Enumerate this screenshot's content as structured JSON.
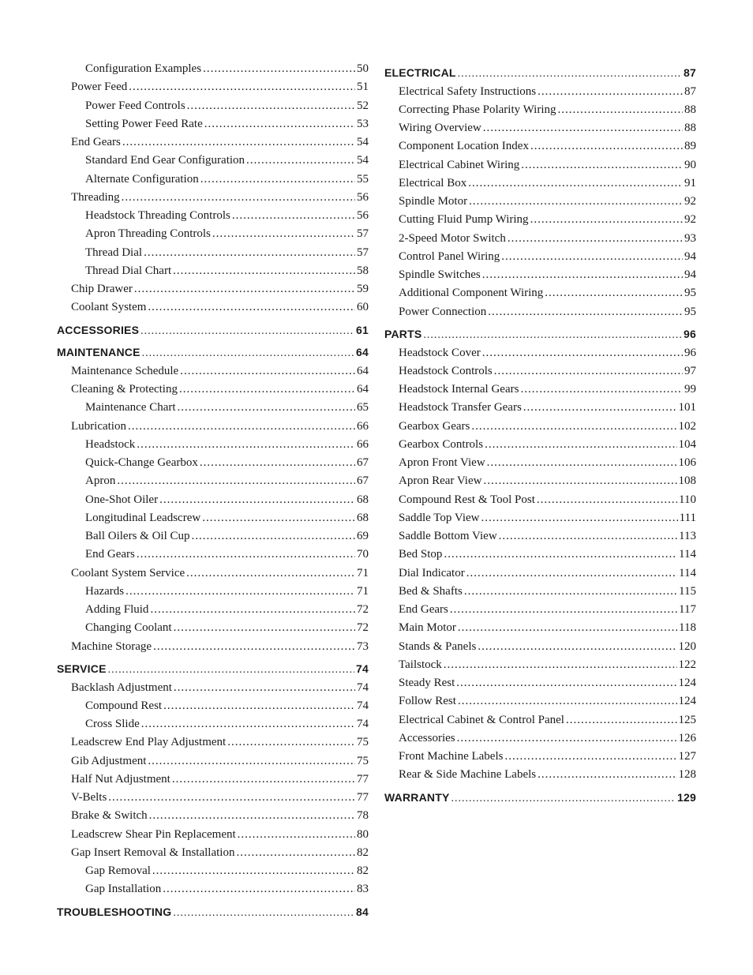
{
  "columns": [
    {
      "items": [
        {
          "label": "Configuration Examples",
          "page": "50",
          "indent": 2,
          "section": false
        },
        {
          "label": "Power Feed",
          "page": "51",
          "indent": 1,
          "section": false
        },
        {
          "label": "Power Feed Controls",
          "page": "52",
          "indent": 2,
          "section": false
        },
        {
          "label": "Setting Power Feed Rate",
          "page": "53",
          "indent": 2,
          "section": false
        },
        {
          "label": "End Gears",
          "page": "54",
          "indent": 1,
          "section": false
        },
        {
          "label": "Standard End Gear Configuration",
          "page": "54",
          "indent": 2,
          "section": false
        },
        {
          "label": "Alternate Configuration",
          "page": "55",
          "indent": 2,
          "section": false
        },
        {
          "label": "Threading",
          "page": "56",
          "indent": 1,
          "section": false
        },
        {
          "label": "Headstock Threading Controls",
          "page": "56",
          "indent": 2,
          "section": false
        },
        {
          "label": "Apron Threading Controls",
          "page": "57",
          "indent": 2,
          "section": false
        },
        {
          "label": "Thread Dial",
          "page": "57",
          "indent": 2,
          "section": false
        },
        {
          "label": "Thread Dial Chart",
          "page": "58",
          "indent": 2,
          "section": false
        },
        {
          "label": "Chip Drawer",
          "page": "59",
          "indent": 1,
          "section": false
        },
        {
          "label": "Coolant System",
          "page": "60",
          "indent": 1,
          "section": false
        },
        {
          "label": "ACCESSORIES",
          "page": "61",
          "indent": 0,
          "section": true
        },
        {
          "label": "MAINTENANCE",
          "page": "64",
          "indent": 0,
          "section": true
        },
        {
          "label": "Maintenance Schedule",
          "page": "64",
          "indent": 1,
          "section": false
        },
        {
          "label": "Cleaning & Protecting",
          "page": "64",
          "indent": 1,
          "section": false
        },
        {
          "label": "Maintenance Chart",
          "page": "65",
          "indent": 2,
          "section": false
        },
        {
          "label": "Lubrication",
          "page": "66",
          "indent": 1,
          "section": false
        },
        {
          "label": "Headstock",
          "page": "66",
          "indent": 2,
          "section": false
        },
        {
          "label": "Quick-Change Gearbox",
          "page": "67",
          "indent": 2,
          "section": false
        },
        {
          "label": "Apron",
          "page": "67",
          "indent": 2,
          "section": false
        },
        {
          "label": "One-Shot Oiler",
          "page": "68",
          "indent": 2,
          "section": false
        },
        {
          "label": "Longitudinal Leadscrew",
          "page": "68",
          "indent": 2,
          "section": false
        },
        {
          "label": "Ball Oilers & Oil Cup",
          "page": "69",
          "indent": 2,
          "section": false
        },
        {
          "label": "End Gears",
          "page": "70",
          "indent": 2,
          "section": false
        },
        {
          "label": "Coolant System Service",
          "page": "71",
          "indent": 1,
          "section": false
        },
        {
          "label": "Hazards",
          "page": "71",
          "indent": 2,
          "section": false
        },
        {
          "label": "Adding Fluid",
          "page": "72",
          "indent": 2,
          "section": false
        },
        {
          "label": "Changing Coolant",
          "page": "72",
          "indent": 2,
          "section": false
        },
        {
          "label": "Machine Storage",
          "page": "73",
          "indent": 1,
          "section": false
        },
        {
          "label": "SERVICE",
          "page": "74",
          "indent": 0,
          "section": true
        },
        {
          "label": "Backlash Adjustment",
          "page": "74",
          "indent": 1,
          "section": false
        },
        {
          "label": "Compound Rest",
          "page": "74",
          "indent": 2,
          "section": false
        },
        {
          "label": "Cross Slide",
          "page": "74",
          "indent": 2,
          "section": false
        },
        {
          "label": "Leadscrew End Play Adjustment",
          "page": "75",
          "indent": 1,
          "section": false
        },
        {
          "label": "Gib Adjustment",
          "page": "75",
          "indent": 1,
          "section": false
        },
        {
          "label": "Half Nut Adjustment",
          "page": "77",
          "indent": 1,
          "section": false
        },
        {
          "label": "V-Belts",
          "page": "77",
          "indent": 1,
          "section": false
        },
        {
          "label": "Brake & Switch",
          "page": "78",
          "indent": 1,
          "section": false
        },
        {
          "label": "Leadscrew Shear Pin Replacement",
          "page": "80",
          "indent": 1,
          "section": false
        },
        {
          "label": "Gap Insert Removal & Installation",
          "page": "82",
          "indent": 1,
          "section": false
        },
        {
          "label": "Gap Removal",
          "page": "82",
          "indent": 2,
          "section": false
        },
        {
          "label": "Gap Installation",
          "page": "83",
          "indent": 2,
          "section": false
        },
        {
          "label": "TROUBLESHOOTING",
          "page": "84",
          "indent": 0,
          "section": true
        }
      ]
    },
    {
      "items": [
        {
          "label": "ELECTRICAL",
          "page": "87",
          "indent": 0,
          "section": true
        },
        {
          "label": "Electrical Safety Instructions",
          "page": "87",
          "indent": 1,
          "section": false
        },
        {
          "label": "Correcting Phase Polarity Wiring",
          "page": "88",
          "indent": 1,
          "section": false
        },
        {
          "label": "Wiring Overview",
          "page": "88",
          "indent": 1,
          "section": false
        },
        {
          "label": "Component Location Index",
          "page": "89",
          "indent": 1,
          "section": false
        },
        {
          "label": "Electrical Cabinet Wiring",
          "page": "90",
          "indent": 1,
          "section": false
        },
        {
          "label": "Electrical Box",
          "page": "91",
          "indent": 1,
          "section": false
        },
        {
          "label": "Spindle Motor",
          "page": "92",
          "indent": 1,
          "section": false
        },
        {
          "label": "Cutting Fluid Pump Wiring",
          "page": "92",
          "indent": 1,
          "section": false
        },
        {
          "label": "2-Speed Motor Switch",
          "page": "93",
          "indent": 1,
          "section": false
        },
        {
          "label": "Control Panel Wiring",
          "page": "94",
          "indent": 1,
          "section": false
        },
        {
          "label": "Spindle Switches",
          "page": "94",
          "indent": 1,
          "section": false
        },
        {
          "label": "Additional Component Wiring",
          "page": "95",
          "indent": 1,
          "section": false
        },
        {
          "label": "Power Connection",
          "page": "95",
          "indent": 1,
          "section": false
        },
        {
          "label": "PARTS",
          "page": "96",
          "indent": 0,
          "section": true
        },
        {
          "label": "Headstock Cover",
          "page": "96",
          "indent": 1,
          "section": false
        },
        {
          "label": "Headstock Controls",
          "page": "97",
          "indent": 1,
          "section": false
        },
        {
          "label": "Headstock Internal Gears",
          "page": "99",
          "indent": 1,
          "section": false
        },
        {
          "label": "Headstock Transfer Gears",
          "page": "101",
          "indent": 1,
          "section": false
        },
        {
          "label": "Gearbox Gears",
          "page": "102",
          "indent": 1,
          "section": false
        },
        {
          "label": "Gearbox Controls",
          "page": "104",
          "indent": 1,
          "section": false
        },
        {
          "label": "Apron Front View",
          "page": "106",
          "indent": 1,
          "section": false
        },
        {
          "label": "Apron Rear View",
          "page": "108",
          "indent": 1,
          "section": false
        },
        {
          "label": "Compound Rest & Tool Post",
          "page": "110",
          "indent": 1,
          "section": false
        },
        {
          "label": "Saddle Top View",
          "page": "111",
          "indent": 1,
          "section": false
        },
        {
          "label": "Saddle Bottom View",
          "page": "113",
          "indent": 1,
          "section": false
        },
        {
          "label": "Bed Stop",
          "page": "114",
          "indent": 1,
          "section": false
        },
        {
          "label": "Dial Indicator",
          "page": "114",
          "indent": 1,
          "section": false
        },
        {
          "label": "Bed & Shafts",
          "page": "115",
          "indent": 1,
          "section": false
        },
        {
          "label": "End Gears",
          "page": "117",
          "indent": 1,
          "section": false
        },
        {
          "label": "Main Motor",
          "page": "118",
          "indent": 1,
          "section": false
        },
        {
          "label": "Stands & Panels",
          "page": "120",
          "indent": 1,
          "section": false
        },
        {
          "label": "Tailstock",
          "page": "122",
          "indent": 1,
          "section": false
        },
        {
          "label": "Steady Rest",
          "page": "124",
          "indent": 1,
          "section": false
        },
        {
          "label": "Follow Rest",
          "page": "124",
          "indent": 1,
          "section": false
        },
        {
          "label": "Electrical Cabinet & Control Panel",
          "page": "125",
          "indent": 1,
          "section": false
        },
        {
          "label": "Accessories",
          "page": "126",
          "indent": 1,
          "section": false
        },
        {
          "label": "Front Machine Labels",
          "page": "127",
          "indent": 1,
          "section": false
        },
        {
          "label": "Rear & Side Machine Labels",
          "page": "128",
          "indent": 1,
          "section": false
        },
        {
          "label": "WARRANTY",
          "page": "129",
          "indent": 0,
          "section": true
        }
      ]
    }
  ]
}
